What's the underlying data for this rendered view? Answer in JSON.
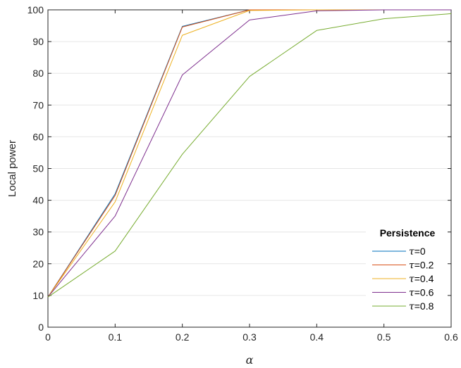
{
  "chart_data": {
    "type": "line",
    "title": "",
    "xlabel": "α",
    "ylabel": "Local power",
    "xlim": [
      0,
      0.6
    ],
    "ylim": [
      0,
      100
    ],
    "xticks": [
      0,
      0.1,
      0.2,
      0.3,
      0.4,
      0.5,
      0.6
    ],
    "xtick_labels": [
      "0",
      "0.1",
      "0.2",
      "0.3",
      "0.4",
      "0.5",
      "0.6"
    ],
    "yticks": [
      0,
      10,
      20,
      30,
      40,
      50,
      60,
      70,
      80,
      90,
      100
    ],
    "ytick_labels": [
      "0",
      "10",
      "20",
      "30",
      "40",
      "50",
      "60",
      "70",
      "80",
      "90",
      "100"
    ],
    "grid": "horizontal",
    "legend": {
      "title": "Persistence",
      "placement": "bottom-right"
    },
    "x": [
      0,
      0.1,
      0.2,
      0.3,
      0.4,
      0.5,
      0.6
    ],
    "series": [
      {
        "name": "τ=0",
        "color": "#0072BD",
        "values": [
          9.5,
          42,
          94.8,
          100,
          100,
          100,
          100
        ]
      },
      {
        "name": "τ=0.2",
        "color": "#D95319",
        "values": [
          9.5,
          41.5,
          94.6,
          100,
          100,
          100,
          100
        ]
      },
      {
        "name": "τ=0.4",
        "color": "#EDB120",
        "values": [
          9.5,
          39.5,
          92,
          99.8,
          100,
          100,
          100
        ]
      },
      {
        "name": "τ=0.6",
        "color": "#7E2F8E",
        "values": [
          9.5,
          35,
          79.5,
          96.8,
          99.7,
          100,
          100
        ]
      },
      {
        "name": "τ=0.8",
        "color": "#77AC30",
        "values": [
          9.5,
          24,
          54.5,
          79,
          93.5,
          97.2,
          98.8
        ]
      }
    ]
  }
}
